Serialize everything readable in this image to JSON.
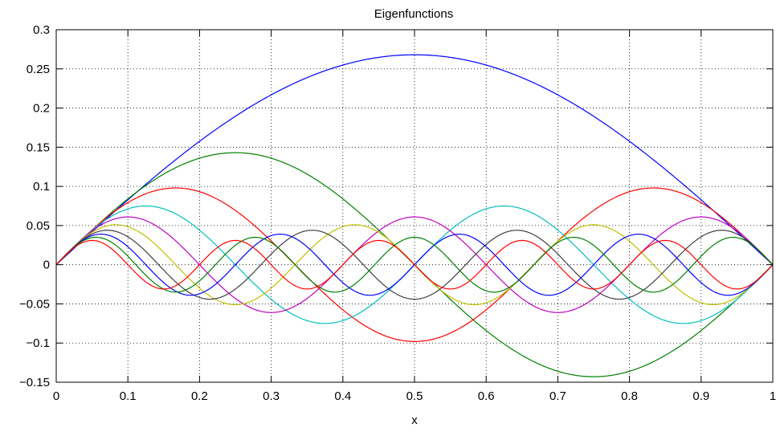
{
  "chart_data": {
    "type": "line",
    "title": "Eigenfunctions",
    "xlabel": "x",
    "ylabel": "",
    "xlim": [
      0,
      1
    ],
    "ylim": [
      -0.15,
      0.3
    ],
    "grid": true,
    "xticks": [
      "0",
      "0.1",
      "0.2",
      "0.3",
      "0.4",
      "0.5",
      "0.6",
      "0.7",
      "0.8",
      "0.9",
      "1"
    ],
    "yticks": [
      "−0.15",
      "−0.1",
      "−0.05",
      "0",
      "0.05",
      "0.1",
      "0.15",
      "0.2",
      "0.25",
      "0.3"
    ],
    "series": [
      {
        "mode": 1,
        "amplitude": 0.268,
        "color": "#0000ff"
      },
      {
        "mode": 2,
        "amplitude": 0.143,
        "color": "#008000"
      },
      {
        "mode": 3,
        "amplitude": 0.098,
        "color": "#ff0000"
      },
      {
        "mode": 4,
        "amplitude": 0.075,
        "color": "#00bfbf"
      },
      {
        "mode": 5,
        "amplitude": 0.061,
        "color": "#bf00bf"
      },
      {
        "mode": 6,
        "amplitude": 0.051,
        "color": "#bfbf00"
      },
      {
        "mode": 7,
        "amplitude": 0.044,
        "color": "#404040"
      },
      {
        "mode": 8,
        "amplitude": 0.039,
        "color": "#0000ff"
      },
      {
        "mode": 9,
        "amplitude": 0.035,
        "color": "#008000"
      },
      {
        "mode": 10,
        "amplitude": 0.031,
        "color": "#ff0000"
      }
    ]
  }
}
